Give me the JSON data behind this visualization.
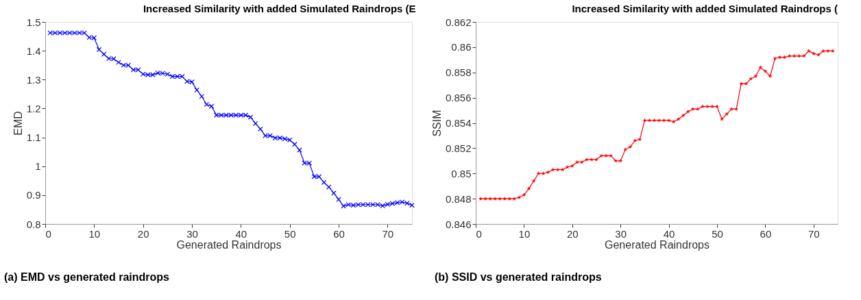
{
  "chart_data": [
    {
      "type": "line",
      "title": "Increased Similarity with added Simulated Raindrops (E",
      "xlabel": "Generated Raindrops",
      "ylabel": "EMD",
      "annotations": [
        "(a) EMD vs generated raindrops"
      ],
      "marker": "cross",
      "grid": false,
      "legend": false,
      "x": [
        1,
        2,
        3,
        4,
        5,
        6,
        7,
        8,
        9,
        10,
        11,
        12,
        13,
        14,
        15,
        16,
        17,
        18,
        19,
        20,
        21,
        22,
        23,
        24,
        25,
        26,
        27,
        28,
        29,
        30,
        31,
        32,
        33,
        34,
        35,
        36,
        37,
        38,
        39,
        40,
        41,
        42,
        43,
        44,
        45,
        46,
        47,
        48,
        49,
        50,
        51,
        52,
        53,
        54,
        55,
        56,
        57,
        58,
        59,
        60,
        61,
        62,
        63,
        64,
        65,
        66,
        67,
        68,
        69,
        70,
        71,
        72,
        73,
        74,
        75
      ],
      "series": [
        {
          "color": "#0000ff",
          "values": [
            1.462,
            1.462,
            1.462,
            1.462,
            1.462,
            1.462,
            1.462,
            1.462,
            1.446,
            1.445,
            1.404,
            1.388,
            1.373,
            1.372,
            1.36,
            1.35,
            1.35,
            1.334,
            1.334,
            1.319,
            1.317,
            1.317,
            1.323,
            1.322,
            1.319,
            1.311,
            1.311,
            1.311,
            1.294,
            1.292,
            1.264,
            1.242,
            1.214,
            1.208,
            1.177,
            1.177,
            1.177,
            1.177,
            1.177,
            1.177,
            1.177,
            1.17,
            1.148,
            1.129,
            1.106,
            1.106,
            1.098,
            1.098,
            1.095,
            1.091,
            1.076,
            1.056,
            1.011,
            1.011,
            0.964,
            0.964,
            0.944,
            0.928,
            0.907,
            0.885,
            0.862,
            0.867,
            0.865,
            0.867,
            0.867,
            0.867,
            0.867,
            0.867,
            0.863,
            0.868,
            0.871,
            0.874,
            0.876,
            0.872,
            0.865
          ]
        }
      ],
      "xlim": [
        0,
        75
      ],
      "xticks": [
        0,
        10,
        20,
        30,
        40,
        50,
        60,
        70
      ],
      "ylim": [
        0.8,
        1.5
      ],
      "yticks": [
        {
          "value": 0.8,
          "label": "0.8"
        },
        {
          "value": 0.9,
          "label": "0.9"
        },
        {
          "value": 1,
          "label": "1"
        },
        {
          "value": 1.1,
          "label": "1.1"
        },
        {
          "value": 1.2,
          "label": "1.2"
        },
        {
          "value": 1.3,
          "label": "1.3"
        },
        {
          "value": 1.4,
          "label": "1.4"
        },
        {
          "value": 1.5,
          "label": "1.5"
        }
      ]
    },
    {
      "type": "line",
      "title": "Increased Similarity with added Simulated Raindrops (",
      "xlabel": "Generated Raindrops",
      "ylabel": "SSIM",
      "annotations": [
        "(b) SSID vs generated raindrops"
      ],
      "marker": "star",
      "grid": false,
      "legend": false,
      "x": [
        1,
        2,
        3,
        4,
        5,
        6,
        7,
        8,
        9,
        10,
        11,
        12,
        13,
        14,
        15,
        16,
        17,
        18,
        19,
        20,
        21,
        22,
        23,
        24,
        25,
        26,
        27,
        28,
        29,
        30,
        31,
        32,
        33,
        34,
        35,
        36,
        37,
        38,
        39,
        40,
        41,
        42,
        43,
        44,
        45,
        46,
        47,
        48,
        49,
        50,
        51,
        52,
        53,
        54,
        55,
        56,
        57,
        58,
        59,
        60,
        61,
        62,
        63,
        64,
        65,
        66,
        67,
        68,
        69,
        70,
        71,
        72,
        73,
        74
      ],
      "series": [
        {
          "color": "#ff0000",
          "values": [
            0.848,
            0.848,
            0.848,
            0.848,
            0.848,
            0.848,
            0.848,
            0.848,
            0.8481,
            0.8483,
            0.8488,
            0.8494,
            0.85,
            0.85,
            0.8501,
            0.8503,
            0.8503,
            0.8503,
            0.8505,
            0.8506,
            0.8509,
            0.8509,
            0.8511,
            0.8511,
            0.8511,
            0.8514,
            0.8514,
            0.8514,
            0.851,
            0.851,
            0.8519,
            0.8521,
            0.8526,
            0.8527,
            0.8542,
            0.8542,
            0.8542,
            0.8542,
            0.8542,
            0.8542,
            0.8541,
            0.8543,
            0.8546,
            0.8549,
            0.8551,
            0.8551,
            0.8553,
            0.8553,
            0.8553,
            0.8553,
            0.8543,
            0.8547,
            0.8551,
            0.8551,
            0.8571,
            0.8571,
            0.8575,
            0.8577,
            0.8584,
            0.8581,
            0.8577,
            0.8591,
            0.8592,
            0.8592,
            0.8593,
            0.8593,
            0.8593,
            0.8593,
            0.8597,
            0.8595,
            0.8594,
            0.8597,
            0.8597,
            0.8597
          ]
        }
      ],
      "xlim": [
        0,
        75
      ],
      "xticks": [
        0,
        10,
        20,
        30,
        40,
        50,
        60,
        70
      ],
      "ylim": [
        0.846,
        0.862
      ],
      "yticks": [
        {
          "value": 0.846,
          "label": "0.846"
        },
        {
          "value": 0.848,
          "label": "0.848"
        },
        {
          "value": 0.85,
          "label": "0.85"
        },
        {
          "value": 0.852,
          "label": "0.852"
        },
        {
          "value": 0.854,
          "label": "0.854"
        },
        {
          "value": 0.856,
          "label": "0.856"
        },
        {
          "value": 0.858,
          "label": "0.858"
        },
        {
          "value": 0.86,
          "label": "0.86"
        },
        {
          "value": 0.862,
          "label": "0.862"
        }
      ]
    }
  ]
}
